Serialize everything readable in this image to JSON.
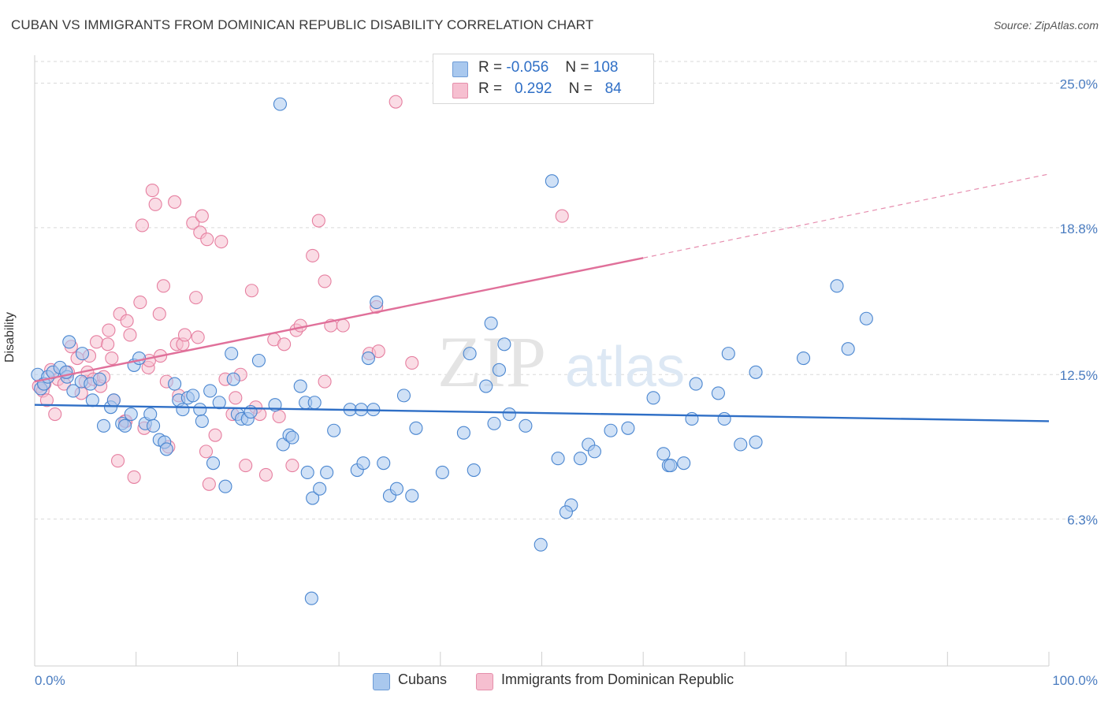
{
  "header": {
    "title": "CUBAN VS IMMIGRANTS FROM DOMINICAN REPUBLIC DISABILITY CORRELATION CHART",
    "source": "Source: ZipAtlas.com"
  },
  "colors": {
    "blue_fill": "#a9c8ee",
    "blue_stroke": "#4a86d0",
    "blue_line": "#2f6fc6",
    "pink_fill": "#f6bfd0",
    "pink_stroke": "#e67fa0",
    "pink_line": "#e0709a",
    "tick_text": "#4a7cc0",
    "grid": "#d9d9d9"
  },
  "legend": {
    "r_label": "R =",
    "n_label": "N =",
    "rows": [
      {
        "r": "-0.056",
        "n": "108",
        "color": "#a9c8ee"
      },
      {
        "r": "0.292",
        "n": "84",
        "color": "#f6bfd0"
      }
    ]
  },
  "watermark": {
    "zip": "ZIP",
    "atlas": "atlas"
  },
  "chart_data": {
    "type": "scatter",
    "title": "CUBAN VS IMMIGRANTS FROM DOMINICAN REPUBLIC DISABILITY CORRELATION CHART",
    "xlabel": "",
    "ylabel": "Disability",
    "xlim": [
      0,
      100
    ],
    "ylim": [
      0,
      26.2
    ],
    "x_tick_labels": [
      "0.0%",
      "100.0%"
    ],
    "y_ticks": [
      6.3,
      12.5,
      18.8,
      25.0
    ],
    "y_tick_labels": [
      "6.3%",
      "12.5%",
      "18.8%",
      "25.0%"
    ],
    "series": [
      {
        "name": "Cubans",
        "color": "#a9c8ee",
        "r": -0.056,
        "n": 108,
        "trend": {
          "x0": 0,
          "y0": 11.2,
          "x1": 100,
          "y1": 10.5
        },
        "points": [
          [
            0.3,
            12.5
          ],
          [
            0.6,
            11.9
          ],
          [
            0.9,
            12.1
          ],
          [
            1.3,
            12.4
          ],
          [
            1.8,
            12.6
          ],
          [
            2.5,
            12.8
          ],
          [
            3.2,
            12.4
          ],
          [
            3.4,
            13.9
          ],
          [
            3.8,
            11.8
          ],
          [
            4.6,
            12.2
          ],
          [
            4.7,
            13.4
          ],
          [
            5.5,
            12.1
          ],
          [
            5.7,
            11.4
          ],
          [
            6.4,
            12.3
          ],
          [
            6.8,
            10.3
          ],
          [
            7.5,
            11.1
          ],
          [
            7.8,
            11.4
          ],
          [
            8.6,
            10.4
          ],
          [
            8.9,
            10.3
          ],
          [
            9.5,
            10.8
          ],
          [
            9.8,
            12.9
          ],
          [
            10.3,
            13.2
          ],
          [
            10.9,
            10.4
          ],
          [
            11.4,
            10.8
          ],
          [
            11.7,
            10.3
          ],
          [
            12.3,
            9.7
          ],
          [
            12.8,
            9.6
          ],
          [
            13.0,
            9.3
          ],
          [
            13.8,
            12.1
          ],
          [
            14.2,
            11.4
          ],
          [
            14.6,
            11.0
          ],
          [
            15.1,
            11.5
          ],
          [
            15.6,
            11.6
          ],
          [
            16.3,
            11.0
          ],
          [
            16.5,
            10.5
          ],
          [
            17.3,
            11.8
          ],
          [
            17.6,
            8.7
          ],
          [
            18.2,
            11.3
          ],
          [
            18.8,
            7.7
          ],
          [
            19.4,
            13.4
          ],
          [
            19.6,
            12.3
          ],
          [
            20.0,
            10.8
          ],
          [
            20.4,
            10.6
          ],
          [
            21.0,
            10.6
          ],
          [
            21.3,
            10.9
          ],
          [
            22.1,
            13.1
          ],
          [
            23.7,
            11.2
          ],
          [
            24.2,
            24.1
          ],
          [
            24.5,
            9.5
          ],
          [
            25.1,
            9.9
          ],
          [
            25.4,
            9.8
          ],
          [
            26.2,
            12.0
          ],
          [
            26.7,
            11.3
          ],
          [
            26.9,
            8.3
          ],
          [
            27.4,
            7.2
          ],
          [
            27.6,
            11.3
          ],
          [
            28.1,
            7.6
          ],
          [
            28.8,
            8.3
          ],
          [
            29.5,
            10.1
          ],
          [
            31.1,
            11.0
          ],
          [
            31.8,
            8.4
          ],
          [
            32.4,
            8.7
          ],
          [
            32.2,
            11.0
          ],
          [
            32.9,
            13.2
          ],
          [
            33.4,
            11.0
          ],
          [
            33.7,
            15.6
          ],
          [
            34.4,
            8.7
          ],
          [
            35.0,
            7.3
          ],
          [
            35.7,
            7.6
          ],
          [
            36.4,
            11.6
          ],
          [
            37.2,
            7.3
          ],
          [
            37.6,
            10.2
          ],
          [
            40.2,
            8.3
          ],
          [
            42.3,
            10.0
          ],
          [
            42.9,
            13.4
          ],
          [
            43.3,
            8.4
          ],
          [
            44.5,
            12.0
          ],
          [
            45.0,
            14.7
          ],
          [
            45.3,
            10.4
          ],
          [
            45.8,
            12.7
          ],
          [
            46.3,
            13.8
          ],
          [
            46.8,
            10.8
          ],
          [
            48.4,
            10.3
          ],
          [
            49.9,
            5.2
          ],
          [
            51.0,
            20.8
          ],
          [
            51.6,
            8.9
          ],
          [
            52.9,
            6.9
          ],
          [
            52.4,
            6.6
          ],
          [
            53.8,
            8.9
          ],
          [
            54.6,
            9.5
          ],
          [
            55.2,
            9.2
          ],
          [
            56.8,
            10.1
          ],
          [
            58.5,
            10.2
          ],
          [
            61.0,
            11.5
          ],
          [
            62.0,
            9.1
          ],
          [
            62.5,
            8.6
          ],
          [
            62.7,
            8.6
          ],
          [
            64.0,
            8.7
          ],
          [
            64.8,
            10.6
          ],
          [
            65.2,
            12.1
          ],
          [
            67.4,
            11.7
          ],
          [
            68.0,
            10.6
          ],
          [
            68.4,
            13.4
          ],
          [
            69.6,
            9.5
          ],
          [
            71.1,
            12.6
          ],
          [
            71.1,
            9.6
          ],
          [
            75.8,
            13.2
          ],
          [
            79.1,
            16.3
          ],
          [
            80.2,
            13.6
          ],
          [
            82.0,
            14.9
          ],
          [
            27.3,
            2.9
          ],
          [
            3.1,
            12.6
          ]
        ]
      },
      {
        "name": "Immigrants from Dominican Republic",
        "color": "#f6bfd0",
        "r": 0.292,
        "n": 84,
        "trend": {
          "x0": 0,
          "y0": 12.2,
          "x1": 60,
          "y1": 17.5,
          "x_dash_end": 100,
          "y_dash_end": 21.1
        },
        "points": [
          [
            0.4,
            12.0
          ],
          [
            0.8,
            11.8
          ],
          [
            1.2,
            11.4
          ],
          [
            1.6,
            12.7
          ],
          [
            2.0,
            10.8
          ],
          [
            2.3,
            12.3
          ],
          [
            2.9,
            12.1
          ],
          [
            3.3,
            12.6
          ],
          [
            3.6,
            13.7
          ],
          [
            4.2,
            13.2
          ],
          [
            4.6,
            11.7
          ],
          [
            5.0,
            12.2
          ],
          [
            5.2,
            12.6
          ],
          [
            5.4,
            13.3
          ],
          [
            5.8,
            12.3
          ],
          [
            6.1,
            13.9
          ],
          [
            6.5,
            12.0
          ],
          [
            6.8,
            12.4
          ],
          [
            7.2,
            13.8
          ],
          [
            7.6,
            13.2
          ],
          [
            7.3,
            14.4
          ],
          [
            7.8,
            11.4
          ],
          [
            8.2,
            8.8
          ],
          [
            8.4,
            15.1
          ],
          [
            8.9,
            10.5
          ],
          [
            9.0,
            10.5
          ],
          [
            9.4,
            14.2
          ],
          [
            9.1,
            14.8
          ],
          [
            9.8,
            8.1
          ],
          [
            10.4,
            15.6
          ],
          [
            10.8,
            10.2
          ],
          [
            10.6,
            18.9
          ],
          [
            11.2,
            12.8
          ],
          [
            11.3,
            13.1
          ],
          [
            11.6,
            20.4
          ],
          [
            11.9,
            19.8
          ],
          [
            12.3,
            15.1
          ],
          [
            12.4,
            13.3
          ],
          [
            12.7,
            16.3
          ],
          [
            13.0,
            12.2
          ],
          [
            13.2,
            9.4
          ],
          [
            13.8,
            19.9
          ],
          [
            14.0,
            13.8
          ],
          [
            14.2,
            11.6
          ],
          [
            14.6,
            13.8
          ],
          [
            14.8,
            14.2
          ],
          [
            15.6,
            19.0
          ],
          [
            15.9,
            15.8
          ],
          [
            16.3,
            18.6
          ],
          [
            16.5,
            19.3
          ],
          [
            16.9,
            9.2
          ],
          [
            17.0,
            18.3
          ],
          [
            17.8,
            9.9
          ],
          [
            17.2,
            7.8
          ],
          [
            18.4,
            18.2
          ],
          [
            18.8,
            12.3
          ],
          [
            19.5,
            10.8
          ],
          [
            20.3,
            12.5
          ],
          [
            19.8,
            11.5
          ],
          [
            20.8,
            8.6
          ],
          [
            21.4,
            16.1
          ],
          [
            21.8,
            11.1
          ],
          [
            22.8,
            8.2
          ],
          [
            23.6,
            14.0
          ],
          [
            24.1,
            10.7
          ],
          [
            24.6,
            13.8
          ],
          [
            25.4,
            8.6
          ],
          [
            25.8,
            14.4
          ],
          [
            26.2,
            14.6
          ],
          [
            27.4,
            17.6
          ],
          [
            28.0,
            19.1
          ],
          [
            28.6,
            16.5
          ],
          [
            28.6,
            12.2
          ],
          [
            29.2,
            14.6
          ],
          [
            30.4,
            14.6
          ],
          [
            33.0,
            13.4
          ],
          [
            33.7,
            15.4
          ],
          [
            33.9,
            13.5
          ],
          [
            35.6,
            24.2
          ],
          [
            37.2,
            13.0
          ],
          [
            52.0,
            19.3
          ],
          [
            16.1,
            14.1
          ],
          [
            22.2,
            10.8
          ],
          [
            1.0,
            12.1
          ]
        ]
      }
    ]
  },
  "bottom_legend": {
    "items": [
      {
        "label": "Cubans",
        "color": "#a9c8ee"
      },
      {
        "label": "Immigrants from Dominican Republic",
        "color": "#f6bfd0"
      }
    ]
  }
}
